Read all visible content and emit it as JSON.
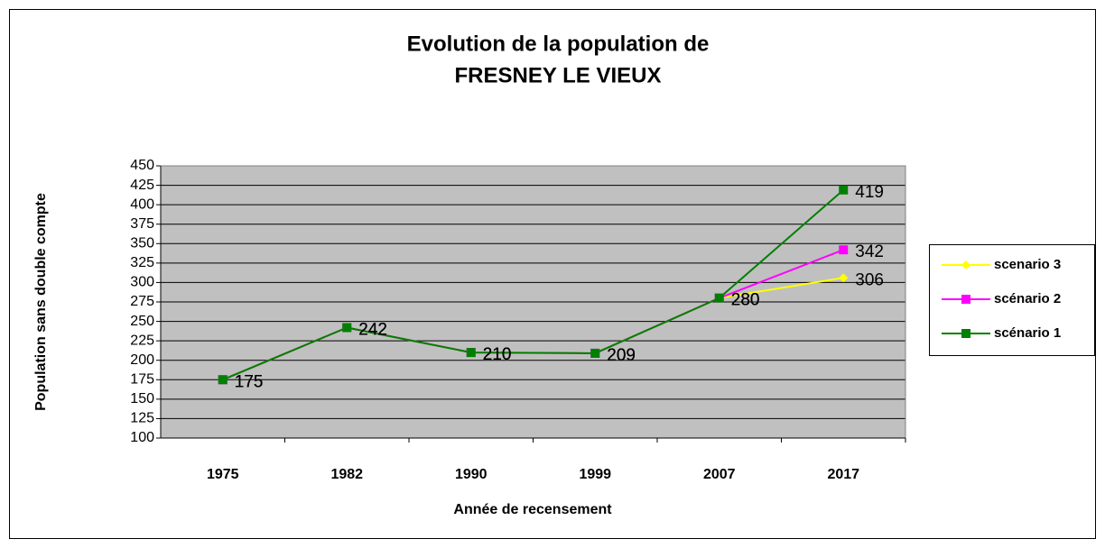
{
  "chart_data": {
    "type": "line",
    "title": [
      "Evolution de la population de",
      "FRESNEY LE VIEUX"
    ],
    "x_label": "Année de recensement",
    "y_label": "Population sans double compte",
    "categories": [
      "1975",
      "1982",
      "1990",
      "1999",
      "2007",
      "2017"
    ],
    "series": [
      {
        "name": "scenario 3",
        "color": "#ffff00",
        "marker": "diamond",
        "values": [
          175,
          242,
          210,
          209,
          280,
          306
        ]
      },
      {
        "name": "scénario 2",
        "color": "#ff00ff",
        "marker": "square",
        "values": [
          175,
          242,
          210,
          209,
          280,
          342
        ]
      },
      {
        "name": "scénario 1",
        "color": "#008000",
        "marker": "square",
        "values": [
          175,
          242,
          210,
          209,
          280,
          419
        ]
      }
    ],
    "ylim": [
      100,
      450
    ],
    "yticks": [
      100,
      125,
      150,
      175,
      200,
      225,
      250,
      275,
      300,
      325,
      350,
      375,
      400,
      425,
      450
    ],
    "grid": true,
    "legend": "right"
  }
}
